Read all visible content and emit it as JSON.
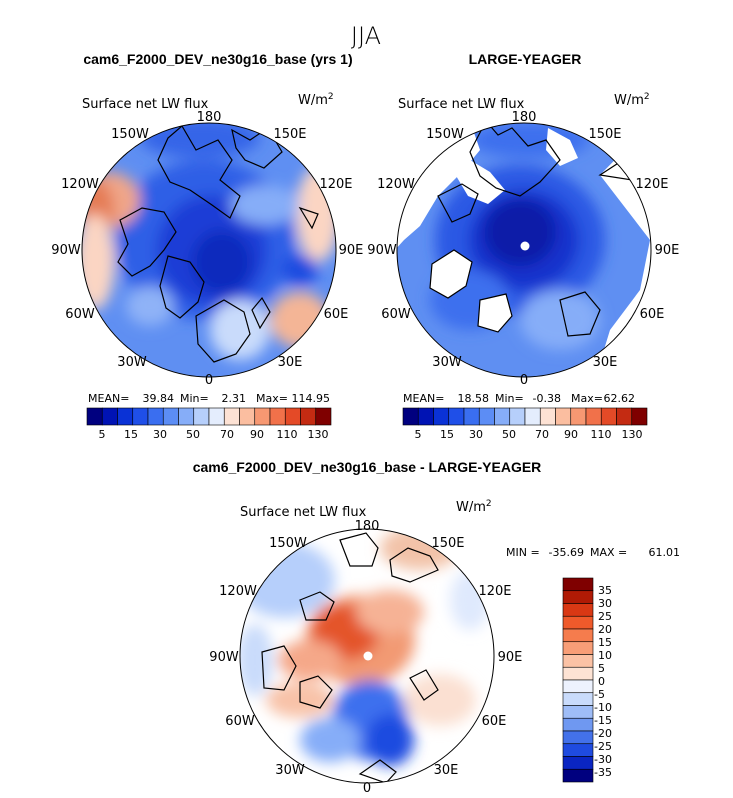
{
  "figure": {
    "title": "JJA"
  },
  "chart_data": [
    {
      "type": "heatmap",
      "projection": "north-polar-stereographic",
      "panel_title": "cam6_F2000_DEV_ne30g16_base (yrs 1)",
      "variable": "Surface net LW flux",
      "units": "W/m",
      "units_exp": "2",
      "lon_labels": [
        "180",
        "150E",
        "120E",
        "90E",
        "60E",
        "30E",
        "0",
        "30W",
        "60W",
        "90W",
        "120W",
        "150W"
      ],
      "stats": {
        "mean_label": "MEAN=",
        "mean": "39.84",
        "min_label": "Min=",
        "min": "2.31",
        "max_label": "Max=",
        "max": "114.95"
      },
      "colorbar": {
        "levels": [
          5,
          10,
          15,
          20,
          30,
          40,
          50,
          60,
          70,
          80,
          90,
          100,
          110,
          120,
          130
        ],
        "tick_labels": [
          "5",
          "15",
          "30",
          "50",
          "70",
          "90",
          "110",
          "130"
        ],
        "colors": [
          "#00007f",
          "#0013b4",
          "#0a32d6",
          "#1f4fe8",
          "#3a6ef0",
          "#5c8df5",
          "#86adf8",
          "#b6cffb",
          "#e4edfd",
          "#fde2d4",
          "#fbbea0",
          "#f79872",
          "#f1714a",
          "#e44a27",
          "#c42b12",
          "#7f0000"
        ]
      }
    },
    {
      "type": "heatmap",
      "projection": "north-polar-stereographic",
      "panel_title": "LARGE-YEAGER",
      "variable": "Surface net LW flux",
      "units": "W/m",
      "units_exp": "2",
      "lon_labels": [
        "180",
        "150E",
        "120E",
        "90E",
        "60E",
        "30E",
        "0",
        "30W",
        "60W",
        "90W",
        "120W",
        "150W"
      ],
      "stats": {
        "mean_label": "MEAN=",
        "mean": "18.58",
        "min_label": "Min=",
        "min": "-0.38",
        "max_label": "Max=",
        "max": "62.62"
      },
      "colorbar": {
        "levels": [
          5,
          10,
          15,
          20,
          30,
          40,
          50,
          60,
          70,
          80,
          90,
          100,
          110,
          120,
          130
        ],
        "tick_labels": [
          "5",
          "15",
          "30",
          "50",
          "70",
          "90",
          "110",
          "130"
        ],
        "colors": [
          "#00007f",
          "#0013b4",
          "#0a32d6",
          "#1f4fe8",
          "#3a6ef0",
          "#5c8df5",
          "#86adf8",
          "#b6cffb",
          "#e4edfd",
          "#fde2d4",
          "#fbbea0",
          "#f79872",
          "#f1714a",
          "#e44a27",
          "#c42b12",
          "#7f0000"
        ]
      }
    },
    {
      "type": "heatmap",
      "projection": "north-polar-stereographic",
      "panel_title": "cam6_F2000_DEV_ne30g16_base - LARGE-YEAGER",
      "variable": "Surface net LW flux",
      "units": "W/m",
      "units_exp": "2",
      "lon_labels": [
        "180",
        "150E",
        "120E",
        "90E",
        "60E",
        "30E",
        "0",
        "30W",
        "60W",
        "90W",
        "120W",
        "150W"
      ],
      "stats": {
        "min_label": "MIN =",
        "min": "-35.69",
        "max_label": "MAX =",
        "max": "61.01"
      },
      "colorbar": {
        "orientation": "vertical",
        "tick_labels": [
          "35",
          "30",
          "25",
          "20",
          "15",
          "10",
          "5",
          "0",
          "-5",
          "-10",
          "-15",
          "-20",
          "-25",
          "-30",
          "-35"
        ],
        "colors": [
          "#7f0000",
          "#b01a05",
          "#d93814",
          "#ef5a2b",
          "#f57c4d",
          "#f89e77",
          "#fbc2a5",
          "#fde3d4",
          "#edf2fe",
          "#c9dbfb",
          "#9fbdf7",
          "#6f98f1",
          "#4371ea",
          "#1f4be0",
          "#0a25c2",
          "#00007f"
        ]
      }
    }
  ]
}
